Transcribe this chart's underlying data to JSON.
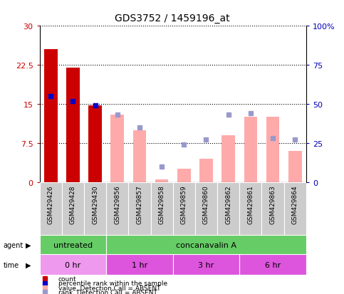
{
  "title": "GDS3752 / 1459196_at",
  "samples": [
    "GSM429426",
    "GSM429428",
    "GSM429430",
    "GSM429856",
    "GSM429857",
    "GSM429858",
    "GSM429859",
    "GSM429860",
    "GSM429862",
    "GSM429861",
    "GSM429863",
    "GSM429864"
  ],
  "count_values": [
    25.5,
    22.0,
    14.7,
    null,
    null,
    null,
    null,
    null,
    null,
    null,
    null,
    null
  ],
  "rank_values_left": [
    16.5,
    15.5,
    14.7,
    null,
    null,
    null,
    null,
    null,
    null,
    null,
    null,
    null
  ],
  "absent_value_values": [
    null,
    null,
    null,
    13.0,
    10.0,
    0.5,
    2.5,
    4.5,
    9.0,
    12.5,
    12.5,
    6.0
  ],
  "absent_rank_pct": [
    null,
    null,
    null,
    43.0,
    35.0,
    10.0,
    24.0,
    27.0,
    43.0,
    44.0,
    28.0,
    27.0
  ],
  "ylim_left": [
    0,
    30
  ],
  "ylim_right": [
    0,
    100
  ],
  "yticks_left": [
    0,
    7.5,
    15,
    22.5,
    30
  ],
  "yticks_right": [
    0,
    25,
    50,
    75,
    100
  ],
  "ytick_labels_left": [
    "0",
    "7.5",
    "15",
    "22.5",
    "30"
  ],
  "ytick_labels_right": [
    "0",
    "25",
    "50",
    "75",
    "100%"
  ],
  "bar_width": 0.6,
  "count_color": "#cc0000",
  "rank_color": "#0000cc",
  "absent_value_color": "#ffaaaa",
  "absent_rank_color": "#9999cc",
  "plot_bg": "#ffffff",
  "xlabel_bg": "#cccccc",
  "agent_untreated_color": "#66cc66",
  "agent_conc_color": "#66cc66",
  "time_0hr_color": "#ee99ee",
  "time_other_color": "#dd55dd",
  "title_fontsize": 10,
  "axis_color_left": "#cc0000",
  "axis_color_right": "#0000bb"
}
